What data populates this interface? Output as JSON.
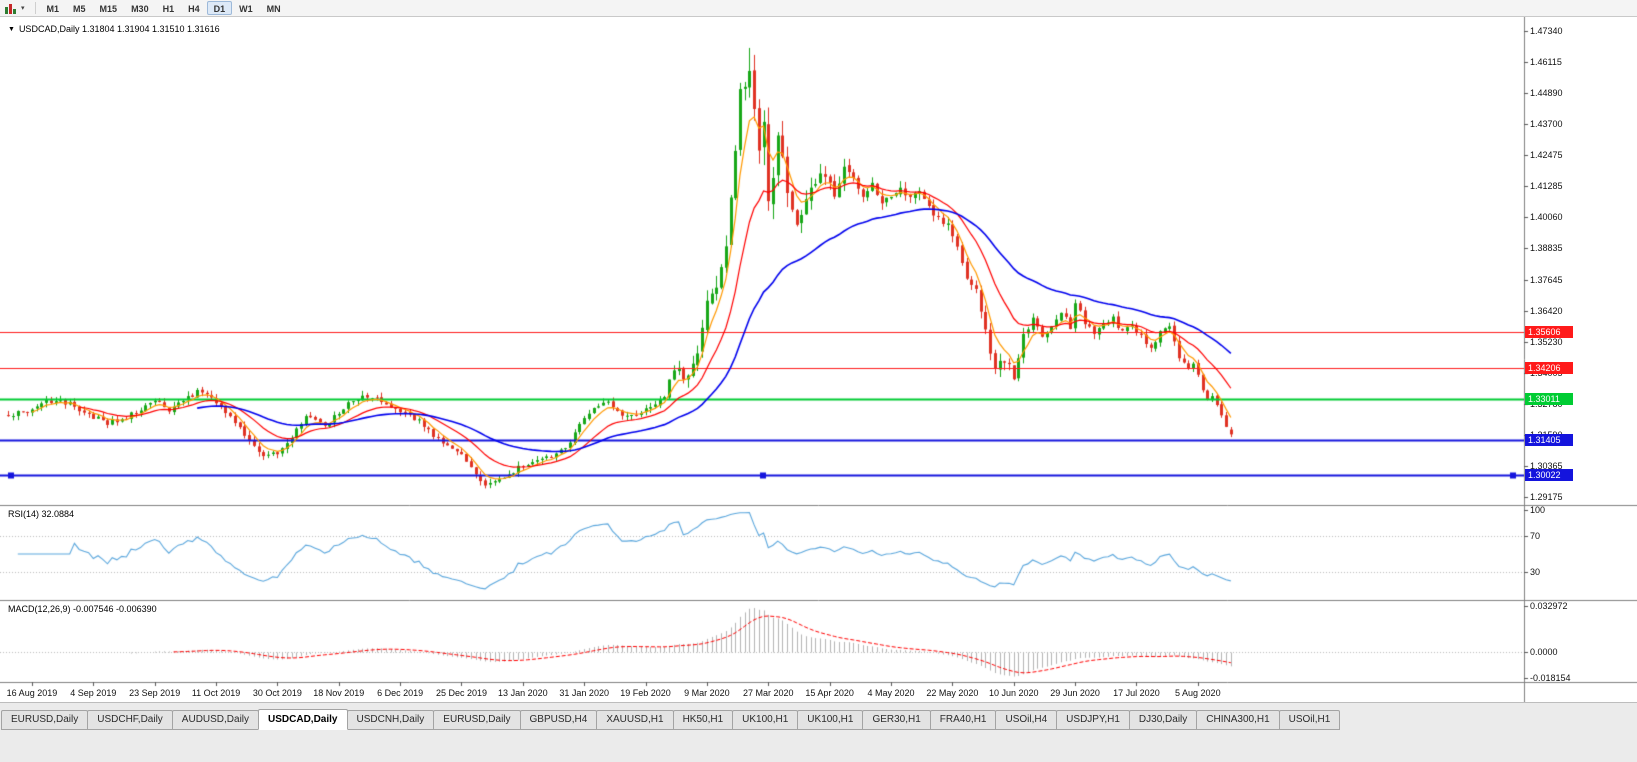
{
  "toolbar": {
    "timeframes": [
      "M1",
      "M5",
      "M15",
      "M30",
      "H1",
      "H4",
      "D1",
      "W1",
      "MN"
    ],
    "active_timeframe": "D1"
  },
  "chart_header": {
    "collapse_icon": "▼",
    "title": "USDCAD,Daily 1.31804 1.31904 1.31510 1.31616"
  },
  "panels": {
    "rsi_label": "RSI(14) 32.0884",
    "macd_label": "MACD(12,26,9) -0.007546 -0.006390"
  },
  "axes": {
    "price_ticks": [
      "1.47340",
      "1.46115",
      "1.44890",
      "1.43700",
      "1.42475",
      "1.41285",
      "1.40060",
      "1.38835",
      "1.37645",
      "1.36420",
      "1.35230",
      "1.34005",
      "1.32780",
      "1.31590",
      "1.30365",
      "1.29175"
    ],
    "rsi_ticks": [
      "100",
      "70",
      "30"
    ],
    "macd_ticks": [
      "0.032972",
      "0.0000",
      "-0.018154"
    ],
    "dates": [
      "16 Aug 2019",
      "4 Sep 2019",
      "23 Sep 2019",
      "11 Oct 2019",
      "30 Oct 2019",
      "18 Nov 2019",
      "6 Dec 2019",
      "25 Dec 2019",
      "13 Jan 2020",
      "31 Jan 2020",
      "19 Feb 2020",
      "9 Mar 2020",
      "27 Mar 2020",
      "15 Apr 2020",
      "4 May 2020",
      "22 May 2020",
      "10 Jun 2020",
      "29 Jun 2020",
      "17 Jul 2020",
      "5 Aug 2020"
    ]
  },
  "tabs": [
    "EURUSD,Daily",
    "USDCHF,Daily",
    "AUDUSD,Daily",
    "USDCAD,Daily",
    "USDCNH,Daily",
    "EURUSD,Daily",
    "GBPUSD,H4",
    "XAUUSD,H1",
    "HK50,H1",
    "UK100,H1",
    "UK100,H1",
    "GER30,H1",
    "FRA40,H1",
    "USOil,H4",
    "USDJPY,H1",
    "DJ30,Daily",
    "CHINA300,H1",
    "USOil,H1"
  ],
  "active_tab_index": 3,
  "chart_data": {
    "type": "candlestick",
    "symbol": "USDCAD",
    "timeframe": "Daily",
    "last_candle": {
      "open": 1.31804,
      "high": 1.31904,
      "low": 1.3151,
      "close": 1.31616
    },
    "price_range": {
      "top": 1.4734,
      "bottom": 1.29175
    },
    "num_candles": 260,
    "extreme_high": {
      "index": 157,
      "price": 1.4668
    },
    "extreme_low": {
      "index": 101,
      "price": 1.2951
    },
    "close_keyframes": [
      [
        0,
        1.3235
      ],
      [
        3,
        1.325
      ],
      [
        5,
        1.3262
      ],
      [
        8,
        1.3288
      ],
      [
        10,
        1.3295
      ],
      [
        13,
        1.3278
      ],
      [
        16,
        1.3252
      ],
      [
        18,
        1.3232
      ],
      [
        21,
        1.3205
      ],
      [
        24,
        1.3218
      ],
      [
        27,
        1.3248
      ],
      [
        30,
        1.3282
      ],
      [
        32,
        1.3295
      ],
      [
        34,
        1.3258
      ],
      [
        36,
        1.328
      ],
      [
        38,
        1.3305
      ],
      [
        40,
        1.333
      ],
      [
        42,
        1.331
      ],
      [
        44,
        1.3282
      ],
      [
        46,
        1.324
      ],
      [
        48,
        1.3205
      ],
      [
        50,
        1.316
      ],
      [
        52,
        1.311
      ],
      [
        55,
        1.3075
      ],
      [
        57,
        1.309
      ],
      [
        59,
        1.313
      ],
      [
        61,
        1.318
      ],
      [
        63,
        1.3228
      ],
      [
        65,
        1.321
      ],
      [
        67,
        1.3195
      ],
      [
        70,
        1.3242
      ],
      [
        72,
        1.3278
      ],
      [
        74,
        1.33
      ],
      [
        76,
        1.3308
      ],
      [
        78,
        1.3295
      ],
      [
        80,
        1.3278
      ],
      [
        83,
        1.3255
      ],
      [
        85,
        1.3238
      ],
      [
        87,
        1.3215
      ],
      [
        89,
        1.3172
      ],
      [
        91,
        1.315
      ],
      [
        93,
        1.3122
      ],
      [
        95,
        1.3095
      ],
      [
        97,
        1.3062
      ],
      [
        99,
        1.3005
      ],
      [
        101,
        1.296
      ],
      [
        103,
        1.2978
      ],
      [
        105,
        1.2998
      ],
      [
        107,
        1.3018
      ],
      [
        109,
        1.3042
      ],
      [
        111,
        1.3058
      ],
      [
        113,
        1.3068
      ],
      [
        115,
        1.3078
      ],
      [
        117,
        1.3098
      ],
      [
        119,
        1.3135
      ],
      [
        121,
        1.3195
      ],
      [
        123,
        1.324
      ],
      [
        125,
        1.3272
      ],
      [
        127,
        1.3282
      ],
      [
        129,
        1.3258
      ],
      [
        131,
        1.3228
      ],
      [
        133,
        1.3232
      ],
      [
        135,
        1.3252
      ],
      [
        137,
        1.3285
      ],
      [
        139,
        1.331
      ],
      [
        141,
        1.3422
      ],
      [
        143,
        1.3392
      ],
      [
        145,
        1.3428
      ],
      [
        147,
        1.3565
      ],
      [
        148,
        1.3662
      ],
      [
        149,
        1.3702
      ],
      [
        150,
        1.3745
      ],
      [
        151,
        1.382
      ],
      [
        152,
        1.3928
      ],
      [
        153,
        1.4105
      ],
      [
        154,
        1.4245
      ],
      [
        155,
        1.4478
      ],
      [
        156,
        1.4505
      ],
      [
        157,
        1.4618
      ],
      [
        158,
        1.4462
      ],
      [
        159,
        1.4285
      ],
      [
        160,
        1.4365
      ],
      [
        161,
        1.4085
      ],
      [
        162,
        1.4182
      ],
      [
        163,
        1.4328
      ],
      [
        164,
        1.4252
      ],
      [
        165,
        1.4105
      ],
      [
        166,
        1.4032
      ],
      [
        167,
        1.3992
      ],
      [
        169,
        1.4088
      ],
      [
        171,
        1.4158
      ],
      [
        173,
        1.4182
      ],
      [
        175,
        1.4102
      ],
      [
        177,
        1.4212
      ],
      [
        179,
        1.4162
      ],
      [
        181,
        1.4092
      ],
      [
        183,
        1.4148
      ],
      [
        185,
        1.4062
      ],
      [
        187,
        1.4088
      ],
      [
        189,
        1.4128
      ],
      [
        191,
        1.4082
      ],
      [
        193,
        1.4112
      ],
      [
        195,
        1.4052
      ],
      [
        197,
        1.4002
      ],
      [
        199,
        1.3978
      ],
      [
        201,
        1.3902
      ],
      [
        203,
        1.3772
      ],
      [
        205,
        1.3722
      ],
      [
        207,
        1.3562
      ],
      [
        209,
        1.3422
      ],
      [
        211,
        1.3452
      ],
      [
        213,
        1.3392
      ],
      [
        215,
        1.3542
      ],
      [
        217,
        1.3618
      ],
      [
        219,
        1.3552
      ],
      [
        221,
        1.3582
      ],
      [
        223,
        1.3642
      ],
      [
        225,
        1.3582
      ],
      [
        226,
        1.3678
      ],
      [
        228,
        1.3602
      ],
      [
        230,
        1.3562
      ],
      [
        232,
        1.3582
      ],
      [
        234,
        1.3612
      ],
      [
        236,
        1.3562
      ],
      [
        238,
        1.3582
      ],
      [
        240,
        1.3542
      ],
      [
        242,
        1.3502
      ],
      [
        244,
        1.3558
      ],
      [
        246,
        1.3575
      ],
      [
        247,
        1.3528
      ],
      [
        248,
        1.3462
      ],
      [
        250,
        1.3415
      ],
      [
        251,
        1.3442
      ],
      [
        252,
        1.3385
      ],
      [
        253,
        1.3332
      ],
      [
        254,
        1.3292
      ],
      [
        255,
        1.3312
      ],
      [
        256,
        1.3272
      ],
      [
        257,
        1.3232
      ],
      [
        258,
        1.3198
      ],
      [
        259,
        1.31616
      ]
    ],
    "volatility_keyframes": [
      [
        0,
        0.0038
      ],
      [
        100,
        0.0038
      ],
      [
        120,
        0.0032
      ],
      [
        140,
        0.0045
      ],
      [
        147,
        0.009
      ],
      [
        150,
        0.013
      ],
      [
        158,
        0.015
      ],
      [
        166,
        0.011
      ],
      [
        172,
        0.008
      ],
      [
        180,
        0.006
      ],
      [
        195,
        0.005
      ],
      [
        205,
        0.0065
      ],
      [
        212,
        0.006
      ],
      [
        220,
        0.0045
      ],
      [
        240,
        0.0038
      ],
      [
        259,
        0.0032
      ]
    ],
    "moving_averages": [
      {
        "period": 5,
        "method": "ema",
        "color": "#ff9900"
      },
      {
        "period": 15,
        "method": "ema",
        "color": "#ff0000"
      },
      {
        "period": 40,
        "method": "ema",
        "color": "#0000ee"
      }
    ],
    "levels": [
      {
        "price": 1.35606,
        "label": "1.35606",
        "color": "#ff1a1a",
        "width": 1,
        "type": "resistance",
        "selected": false
      },
      {
        "price": 1.34206,
        "label": "1.34206",
        "color": "#ff1a1a",
        "width": 1,
        "type": "resistance",
        "selected": false
      },
      {
        "price": 1.33011,
        "label": "1.33011",
        "color": "#00cc33",
        "width": 2,
        "type": "support",
        "selected": false
      },
      {
        "price": 1.31405,
        "label": "1.31405",
        "color": "#1414dd",
        "width": 2,
        "type": "support",
        "selected": false
      },
      {
        "price": 1.30022,
        "label": "1.30022",
        "color": "#1414dd",
        "width": 2,
        "type": "support",
        "selected": true
      }
    ],
    "rsi": {
      "period": 14,
      "current": 32.0884,
      "range": [
        0,
        100
      ],
      "level_lines": [
        70,
        30
      ],
      "color": "#5ba7dd"
    },
    "macd": {
      "fast": 12,
      "slow": 26,
      "signal_period": 9,
      "current_macd": -0.007546,
      "current_signal": -0.00639,
      "range": [
        -0.018154,
        0.032972
      ],
      "hist_color": "#b3b3b3",
      "signal_color": "#ff0000"
    },
    "colors": {
      "up": "#18a818",
      "down": "#e03224",
      "background": "#ffffff",
      "axis": "#808080"
    }
  }
}
